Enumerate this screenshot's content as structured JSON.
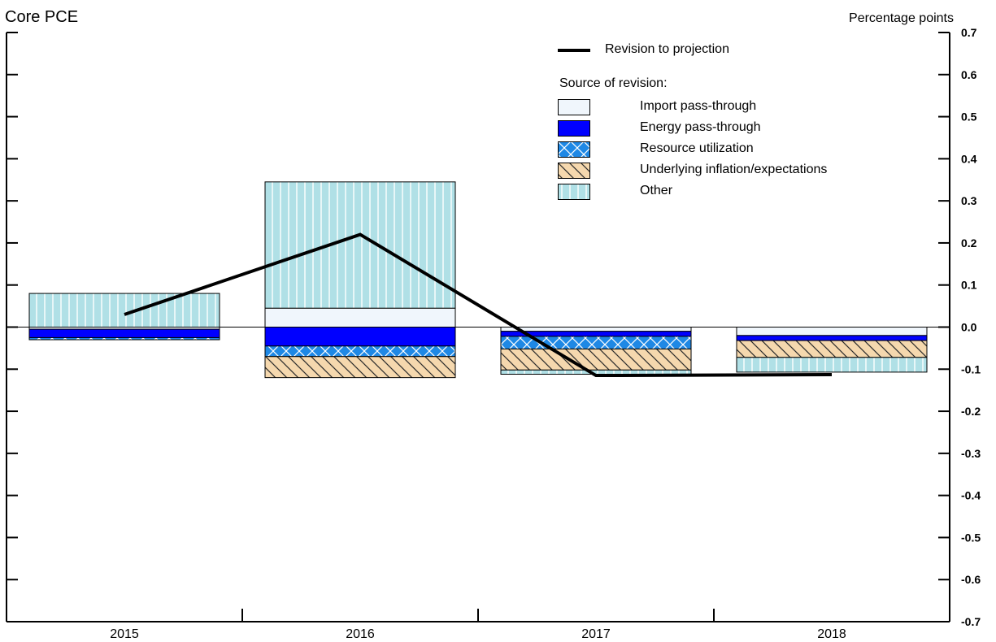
{
  "chart_data": {
    "type": "bar",
    "stacked": true,
    "title": "Core PCE",
    "y_unit_label": "Percentage points",
    "categories": [
      "2015",
      "2016",
      "2017",
      "2018"
    ],
    "ylim": [
      -0.7,
      0.7
    ],
    "yticks": [
      "0.7",
      "0.6",
      "0.5",
      "0.4",
      "0.3",
      "0.2",
      "0.1",
      "0.0",
      "-0.1",
      "-0.2",
      "-0.3",
      "-0.4",
      "-0.5",
      "-0.6",
      "-0.7"
    ],
    "y_axis_side": "right",
    "legend_heading": "Source of revision:",
    "line_series": {
      "name": "Revision to projection",
      "values": [
        0.03,
        0.22,
        -0.115,
        -0.113
      ],
      "color": "#000000"
    },
    "series": [
      {
        "name": "Import pass-through",
        "values": [
          -0.005,
          0.045,
          -0.01,
          -0.02
        ],
        "color": "#f0f6fc",
        "pattern": "none"
      },
      {
        "name": "Energy pass-through",
        "values": [
          -0.02,
          -0.045,
          -0.012,
          -0.012
        ],
        "color": "#0000ff",
        "pattern": "none"
      },
      {
        "name": "Resource utilization",
        "values": [
          -0.005,
          -0.025,
          -0.03,
          0.0
        ],
        "color": "#1e88e5",
        "pattern": "crosshatch"
      },
      {
        "name": "Underlying inflation/expectations",
        "values": [
          0.0,
          -0.05,
          -0.05,
          -0.04
        ],
        "color": "#f5d8ae",
        "pattern": "diagonal"
      },
      {
        "name": "Other",
        "values": [
          0.08,
          0.3,
          -0.01,
          -0.035
        ],
        "color": "#b0e0e6",
        "pattern": "vertical"
      }
    ]
  }
}
